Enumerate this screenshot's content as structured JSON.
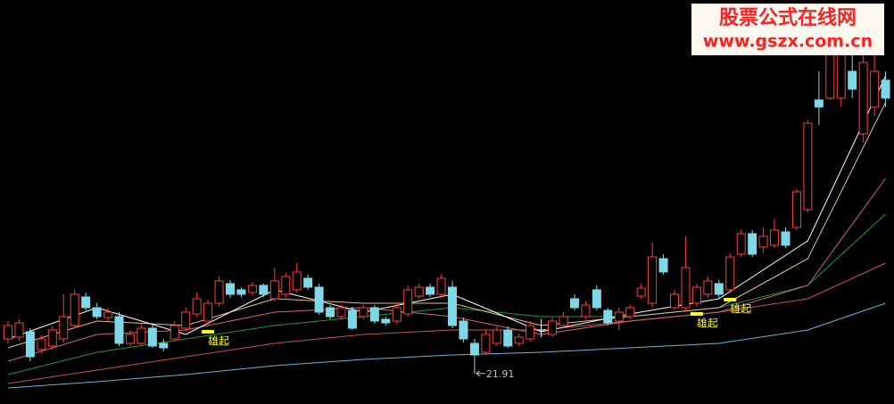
{
  "watermark": {
    "title": "股票公式在线网",
    "url": "www.gszx.com.cn"
  },
  "chart_data": {
    "type": "candlestick",
    "ylim": [
      20,
      42.65
    ],
    "up_color": "#ff3c3c",
    "down_color": "#7fd8e6",
    "flat_color": "#ffffff",
    "open": [
      23.65,
      23.75,
      24.05,
      23.05,
      23.25,
      23.65,
      24.4,
      26.0,
      25.4,
      24.85,
      24.9,
      23.4,
      23.4,
      24.25,
      23.4,
      23.65,
      24.25,
      25.05,
      24.65,
      25.65,
      26.75,
      26.4,
      26.25,
      26.65,
      25.9,
      26.15,
      26.4,
      27.05,
      26.55,
      25.4,
      24.9,
      25.25,
      24.9,
      25.4,
      24.75,
      24.65,
      25.05,
      26.05,
      26.55,
      26.15,
      26.55,
      24.65,
      23.4,
      22.9,
      23.4,
      24.15,
      23.4,
      23.65,
      24.15,
      23.9,
      24.4,
      25.9,
      24.9,
      26.4,
      25.25,
      24.65,
      24.9,
      26.05,
      25.65,
      28.15,
      25.4,
      25.4,
      25.65,
      26.15,
      26.75,
      26.4,
      28.4,
      29.55,
      28.8,
      28.9,
      29.65,
      29.9,
      30.9,
      37.05,
      37.15,
      37.15,
      38.65,
      35.15,
      36.65,
      38.15
    ],
    "high": [
      24.65,
      24.75,
      24.25,
      23.85,
      24.35,
      26.15,
      26.4,
      26.25,
      25.65,
      25.35,
      25.15,
      24.15,
      24.45,
      24.45,
      23.65,
      24.65,
      25.4,
      26.25,
      25.85,
      27.15,
      26.95,
      26.55,
      26.85,
      26.75,
      27.65,
      27.35,
      27.9,
      27.25,
      26.75,
      25.55,
      25.55,
      25.45,
      25.55,
      25.55,
      24.9,
      25.65,
      26.65,
      26.75,
      26.75,
      27.25,
      26.9,
      24.85,
      23.65,
      24.15,
      24.35,
      24.35,
      23.95,
      24.65,
      24.75,
      24.85,
      25.15,
      26.15,
      25.75,
      26.65,
      25.4,
      25.4,
      25.55,
      26.75,
      29.05,
      28.4,
      26.4,
      29.4,
      26.75,
      27.15,
      26.95,
      28.45,
      29.75,
      29.75,
      29.9,
      30.4,
      29.9,
      32.05,
      35.9,
      38.65,
      40.65,
      39.9,
      39.65,
      39.65,
      39.65,
      38.65
    ],
    "low": [
      23.4,
      23.55,
      22.4,
      22.85,
      23.05,
      23.45,
      24.25,
      25.25,
      24.75,
      24.65,
      23.25,
      23.25,
      23.25,
      23.15,
      22.95,
      23.5,
      24.05,
      24.85,
      24.45,
      25.45,
      25.95,
      26.0,
      26.05,
      26.0,
      25.75,
      25.95,
      26.25,
      26.4,
      25.0,
      24.75,
      24.75,
      24.15,
      24.75,
      24.5,
      24.4,
      24.5,
      24.9,
      25.9,
      26.0,
      25.95,
      24.25,
      23.45,
      21.91,
      22.75,
      23.25,
      23.15,
      23.25,
      23.5,
      23.75,
      23.75,
      24.25,
      25.25,
      24.75,
      25.25,
      24.4,
      24.15,
      24.75,
      25.9,
      25.4,
      27.25,
      25.25,
      25.15,
      25.45,
      25.95,
      25.95,
      26.25,
      28.25,
      28.25,
      28.45,
      28.75,
      28.75,
      29.75,
      30.75,
      35.65,
      37.05,
      36.65,
      37.15,
      34.65,
      36.15,
      36.65
    ],
    "close": [
      24.4,
      24.55,
      22.65,
      23.65,
      24.15,
      24.9,
      26.15,
      25.4,
      24.9,
      25.15,
      23.4,
      23.9,
      24.25,
      23.25,
      23.15,
      24.4,
      25.15,
      25.9,
      25.65,
      26.9,
      26.15,
      26.15,
      26.65,
      26.15,
      26.9,
      27.15,
      27.4,
      26.55,
      25.15,
      24.9,
      25.4,
      24.25,
      25.4,
      24.65,
      24.55,
      25.4,
      26.4,
      26.55,
      26.15,
      27.05,
      24.4,
      23.65,
      22.75,
      23.9,
      24.15,
      23.25,
      23.75,
      24.4,
      24.15,
      24.65,
      24.9,
      25.4,
      25.55,
      25.4,
      24.55,
      25.15,
      25.4,
      26.5,
      28.25,
      27.4,
      26.15,
      27.65,
      26.55,
      26.9,
      26.15,
      28.25,
      29.55,
      28.4,
      29.4,
      29.75,
      28.9,
      31.9,
      35.75,
      36.65,
      39.65,
      39.65,
      37.65,
      39.15,
      38.65,
      37.15
    ],
    "moving_averages": [
      {
        "color": "#60b8d8",
        "x": [
          0,
          8,
          16,
          24,
          32,
          40,
          48,
          56,
          64,
          72,
          79
        ],
        "values": [
          20.9,
          21.25,
          21.65,
          22.15,
          22.5,
          22.75,
          22.9,
          23.15,
          23.4,
          24.15,
          25.65
        ]
      },
      {
        "color": "#c8553f",
        "x": [
          0,
          8,
          16,
          24,
          32,
          40,
          48,
          56,
          64,
          72,
          79
        ],
        "values": [
          21.15,
          21.9,
          22.65,
          23.4,
          23.9,
          24.15,
          24.15,
          24.65,
          25.15,
          25.9,
          27.9
        ]
      },
      {
        "color": "#1f9a2a",
        "x": [
          0,
          8,
          16,
          24,
          32,
          40,
          48,
          56,
          64,
          72,
          79
        ],
        "values": [
          21.65,
          22.9,
          23.65,
          24.4,
          24.9,
          25.4,
          24.9,
          24.9,
          25.4,
          26.65,
          30.65
        ]
      },
      {
        "color": "#d06878",
        "x": [
          0,
          8,
          16,
          24,
          32,
          40,
          48,
          56,
          64,
          72,
          79
        ],
        "values": [
          22.4,
          23.9,
          24.15,
          25.15,
          25.4,
          24.9,
          23.9,
          24.65,
          25.15,
          26.65,
          32.65
        ]
      },
      {
        "color": "#e8c080",
        "x": [
          0,
          8,
          16,
          24,
          32,
          40,
          48,
          56,
          64,
          72,
          79
        ],
        "values": [
          23.15,
          24.65,
          24.4,
          25.9,
          25.65,
          25.65,
          24.4,
          24.9,
          25.4,
          28.15,
          36.9
        ]
      },
      {
        "color": "#ffffff",
        "x": [
          0,
          8,
          16,
          24,
          32,
          40,
          48,
          56,
          64,
          72,
          79
        ],
        "values": [
          23.65,
          25.4,
          23.9,
          26.4,
          25.15,
          26.15,
          24.05,
          25.05,
          25.9,
          29.15,
          38.4
        ]
      }
    ],
    "signals": [
      {
        "index": 18,
        "label": "雄起"
      },
      {
        "index": 62,
        "label": "雄起"
      },
      {
        "index": 65,
        "label": "雄起"
      }
    ],
    "signal_color": "#ffff00",
    "low_marker": {
      "index": 42
    }
  }
}
